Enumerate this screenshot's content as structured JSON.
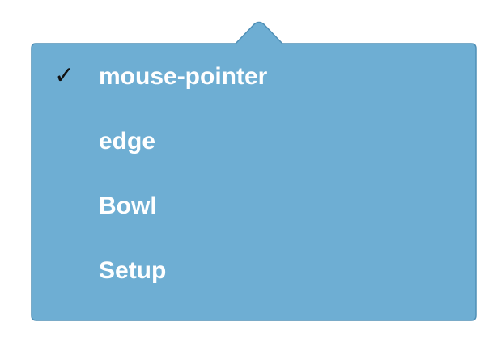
{
  "colors": {
    "menu_background": "#6eaed3",
    "menu_border": "#4f8fb6",
    "label_text": "#ffffff",
    "check_mark": "#111111"
  },
  "menu": {
    "check_glyph": "✓",
    "items": [
      {
        "label": "mouse-pointer",
        "selected": true
      },
      {
        "label": "edge",
        "selected": false
      },
      {
        "label": "Bowl",
        "selected": false
      },
      {
        "label": "Setup",
        "selected": false
      }
    ]
  }
}
